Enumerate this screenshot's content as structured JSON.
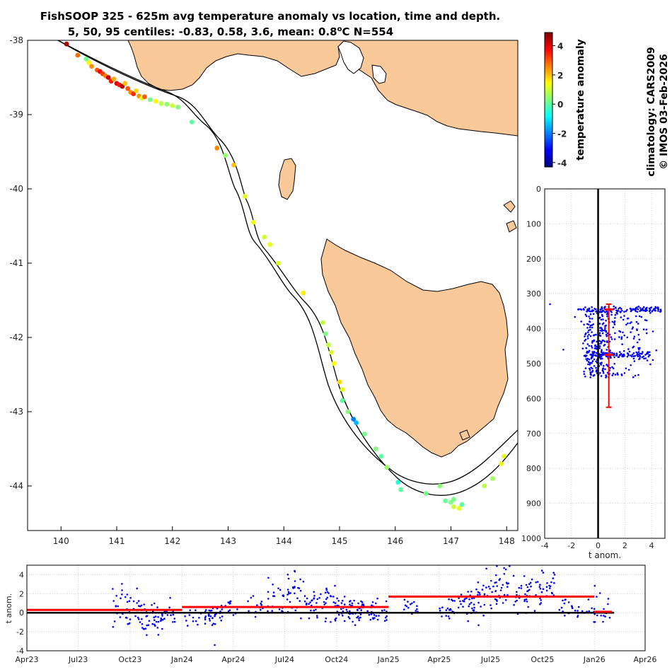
{
  "title_line1": "FishSOOP 325 - 625m avg temperature anomaly vs location, time and depth.",
  "title_line2_prefix": "5, 50, 95 centiles: -0.83, 0.58, 3.6, mean: 0.8",
  "title_line2_deg": "o",
  "title_line2_suffix": "C N=554",
  "colorbar": {
    "label": "temperature anomaly",
    "ticks": [
      "4",
      "2",
      "0",
      "-2",
      "-4"
    ],
    "range": [
      -4.3,
      4.9
    ]
  },
  "credit_line1": "climatology: CARS2009",
  "credit_line2": "© IMOS 03-Feb-2026",
  "colors": {
    "land": "#F9C99A",
    "mean_line": "#FF0000",
    "points": "#0000FF",
    "zero_line": "#000000"
  },
  "chart_data": [
    {
      "type": "scatter",
      "name": "map",
      "xlim": [
        139.4,
        148.2
      ],
      "ylim": [
        -44.6,
        -38
      ],
      "xticks": [
        "140",
        "141",
        "142",
        "143",
        "144",
        "145",
        "146",
        "147",
        "148"
      ],
      "yticks": [
        "-38",
        "-39",
        "-40",
        "-41",
        "-42",
        "-43",
        "-44"
      ],
      "grid": false,
      "points": [
        [
          140.1,
          -38.05,
          4.5
        ],
        [
          140.3,
          -38.2,
          2.8
        ],
        [
          140.45,
          -38.25,
          0.2
        ],
        [
          140.5,
          -38.3,
          1.5
        ],
        [
          140.55,
          -38.35,
          2.5
        ],
        [
          140.65,
          -38.4,
          3.0
        ],
        [
          140.7,
          -38.42,
          3.8
        ],
        [
          140.75,
          -38.45,
          3.2
        ],
        [
          140.8,
          -38.48,
          2.6
        ],
        [
          140.85,
          -38.5,
          4.2
        ],
        [
          140.9,
          -38.55,
          3.5
        ],
        [
          140.95,
          -38.52,
          2.2
        ],
        [
          141.0,
          -38.58,
          4.0
        ],
        [
          141.05,
          -38.6,
          3.6
        ],
        [
          141.1,
          -38.62,
          4.4
        ],
        [
          141.15,
          -38.58,
          2.0
        ],
        [
          141.2,
          -38.65,
          3.0
        ],
        [
          141.25,
          -38.7,
          2.5
        ],
        [
          141.3,
          -38.72,
          3.4
        ],
        [
          141.35,
          -38.68,
          1.8
        ],
        [
          141.4,
          -38.75,
          2.4
        ],
        [
          141.45,
          -38.78,
          1.2
        ],
        [
          141.5,
          -38.76,
          2.9
        ],
        [
          141.6,
          -38.8,
          0.2
        ],
        [
          141.7,
          -38.82,
          1.5
        ],
        [
          141.8,
          -38.85,
          0.8
        ],
        [
          141.9,
          -38.86,
          0.5
        ],
        [
          142.0,
          -38.88,
          1.0
        ],
        [
          142.1,
          -38.9,
          0.3
        ],
        [
          142.35,
          -39.1,
          0.0
        ],
        [
          142.8,
          -39.45,
          2.5
        ],
        [
          142.95,
          -39.55,
          0.5
        ],
        [
          143.1,
          -39.68,
          2.0
        ],
        [
          143.3,
          -40.1,
          1.2
        ],
        [
          143.45,
          -40.45,
          1.3
        ],
        [
          143.65,
          -40.65,
          1.0
        ],
        [
          143.75,
          -40.75,
          1.2
        ],
        [
          143.9,
          -41.0,
          1.1
        ],
        [
          144.35,
          -41.4,
          1.6
        ],
        [
          144.7,
          -41.8,
          0.9
        ],
        [
          144.75,
          -41.95,
          0.3
        ],
        [
          144.8,
          -42.1,
          0.9
        ],
        [
          144.85,
          -42.2,
          1.1
        ],
        [
          144.9,
          -42.35,
          1.4
        ],
        [
          145.0,
          -42.6,
          1.8
        ],
        [
          145.05,
          -42.7,
          1.2
        ],
        [
          145.05,
          -42.85,
          0.0
        ],
        [
          145.15,
          -43.0,
          0.4
        ],
        [
          145.25,
          -43.1,
          -2.0
        ],
        [
          145.3,
          -43.15,
          -1.5
        ],
        [
          145.45,
          -43.3,
          0.2
        ],
        [
          145.65,
          -43.5,
          0.3
        ],
        [
          145.75,
          -43.6,
          0.0
        ],
        [
          145.85,
          -43.75,
          0.5
        ],
        [
          146.05,
          -43.95,
          -0.5
        ],
        [
          146.1,
          -44.05,
          0.0
        ],
        [
          146.55,
          -44.1,
          0.2
        ],
        [
          146.8,
          -44.0,
          0.4
        ],
        [
          146.9,
          -44.2,
          0.1
        ],
        [
          147.0,
          -44.22,
          0.3
        ],
        [
          147.05,
          -44.28,
          1.0
        ],
        [
          147.15,
          -44.3,
          1.2
        ],
        [
          147.05,
          -44.18,
          0.2
        ],
        [
          147.2,
          -44.25,
          0.0
        ],
        [
          147.6,
          -44.0,
          0.8
        ],
        [
          147.75,
          -43.9,
          0.6
        ],
        [
          147.9,
          -43.7,
          1.3
        ],
        [
          147.95,
          -43.6,
          1.2
        ]
      ]
    },
    {
      "type": "scatter",
      "name": "depth",
      "xlabel": "t anom.",
      "xlim": [
        -4,
        5
      ],
      "ylim": [
        0,
        1000
      ],
      "xticks": [
        "-4",
        "-2",
        "0",
        "2",
        "4"
      ],
      "yticks": [
        "0",
        "100",
        "200",
        "300",
        "400",
        "500",
        "600",
        "700",
        "800",
        "900",
        "1000"
      ],
      "grid": true,
      "mean": 0.8,
      "centile_range": [
        330,
        625
      ],
      "centile_marks": [
        345,
        475
      ]
    },
    {
      "type": "scatter",
      "name": "time",
      "ylabel": "t anom.",
      "xlim": [
        "2023-04-01",
        "2026-04-01"
      ],
      "ylim": [
        -4,
        5
      ],
      "xticks": [
        "Apr23",
        "Jul23",
        "Oct23",
        "Jan24",
        "Apr24",
        "Jul24",
        "Oct24",
        "Jan25",
        "Apr25",
        "Jul25",
        "Oct25",
        "Jan26",
        "Apr26"
      ],
      "yticks": [
        "4",
        "2",
        "0",
        "-2",
        "-4"
      ],
      "grid": true,
      "annual_means": [
        {
          "start": "2023-04-01",
          "end": "2024-01-01",
          "value": 0.3
        },
        {
          "start": "2024-01-01",
          "end": "2025-01-01",
          "value": 0.6
        },
        {
          "start": "2025-01-01",
          "end": "2026-01-01",
          "value": 1.7
        },
        {
          "start": "2026-01-01",
          "end": "2026-02-01",
          "value": 0.1
        }
      ]
    }
  ]
}
